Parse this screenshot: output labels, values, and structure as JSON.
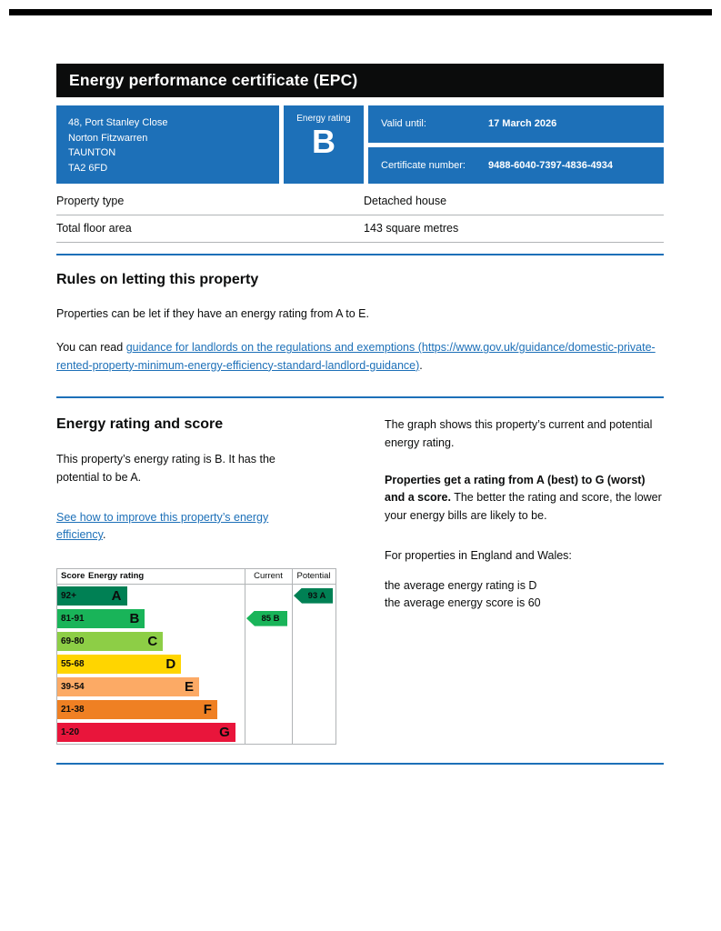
{
  "colors": {
    "brand_blue": "#1d70b8",
    "banner_black": "#0b0c0c",
    "border_grey": "#b1b4b6"
  },
  "header": {
    "title": "Energy performance certificate (EPC)"
  },
  "summary": {
    "address_lines": [
      "48, Port Stanley Close",
      "Norton Fitzwarren",
      "TAUNTON",
      "TA2 6FD"
    ],
    "energy_rating_label": "Energy rating",
    "energy_rating": "B",
    "valid_until_label": "Valid until:",
    "valid_until": "17 March 2026",
    "certificate_number_label": "Certificate number:",
    "certificate_number": "9488-6040-7397-4836-4934"
  },
  "property_table": {
    "rows": [
      {
        "label": "Property type",
        "value": "Detached house"
      },
      {
        "label": "Total floor area",
        "value": "143 square metres"
      }
    ]
  },
  "rules": {
    "heading": "Rules on letting this property",
    "paragraph1": "Properties can be let if they have an energy rating from A to E.",
    "paragraph2_prefix": "You can read ",
    "link_text": "guidance for landlords on the regulations and exemptions (https://www.gov.uk/guidance/domestic-private-rented-property-minimum-energy-efficiency-standard-landlord-guidance)",
    "paragraph2_suffix": "."
  },
  "rating_section": {
    "heading": "Energy rating and score",
    "paragraph1": "This property’s energy rating is B. It has the potential to be A.",
    "link_text": "See how to improve this property’s energy efficiency",
    "link_suffix": ".",
    "right_paragraph1": "The graph shows this property’s current and potential energy rating.",
    "right_paragraph2_bold": "Properties get a rating from A (best) to G (worst) and a score.",
    "right_paragraph2_rest": " The better the rating and score, the lower your energy bills are likely to be.",
    "right_paragraph3": "For properties in England and Wales:",
    "right_line1": "the average energy rating is D",
    "right_line2": "the average energy score is 60"
  },
  "chart_data": {
    "type": "bar",
    "title": "Energy rating and score",
    "headers": {
      "score": "Score",
      "rating": "Energy rating",
      "current": "Current",
      "potential": "Potential"
    },
    "bands": [
      {
        "score": "92+",
        "letter": "A",
        "color": "#008054",
        "width_pct": 25
      },
      {
        "score": "81-91",
        "letter": "B",
        "color": "#19b459",
        "width_pct": 31.5
      },
      {
        "score": "69-80",
        "letter": "C",
        "color": "#8dce46",
        "width_pct": 38
      },
      {
        "score": "55-68",
        "letter": "D",
        "color": "#ffd500",
        "width_pct": 44.5
      },
      {
        "score": "39-54",
        "letter": "E",
        "color": "#fcaa65",
        "width_pct": 51
      },
      {
        "score": "21-38",
        "letter": "F",
        "color": "#ef8023",
        "width_pct": 57.5
      },
      {
        "score": "1-20",
        "letter": "G",
        "color": "#e9153b",
        "width_pct": 64
      }
    ],
    "current": {
      "score": 85,
      "rating": "B",
      "label": "85 B",
      "color": "#19b459",
      "band_index": 1
    },
    "potential": {
      "score": 93,
      "rating": "A",
      "label": "93 A",
      "color": "#008054",
      "band_index": 0
    }
  }
}
